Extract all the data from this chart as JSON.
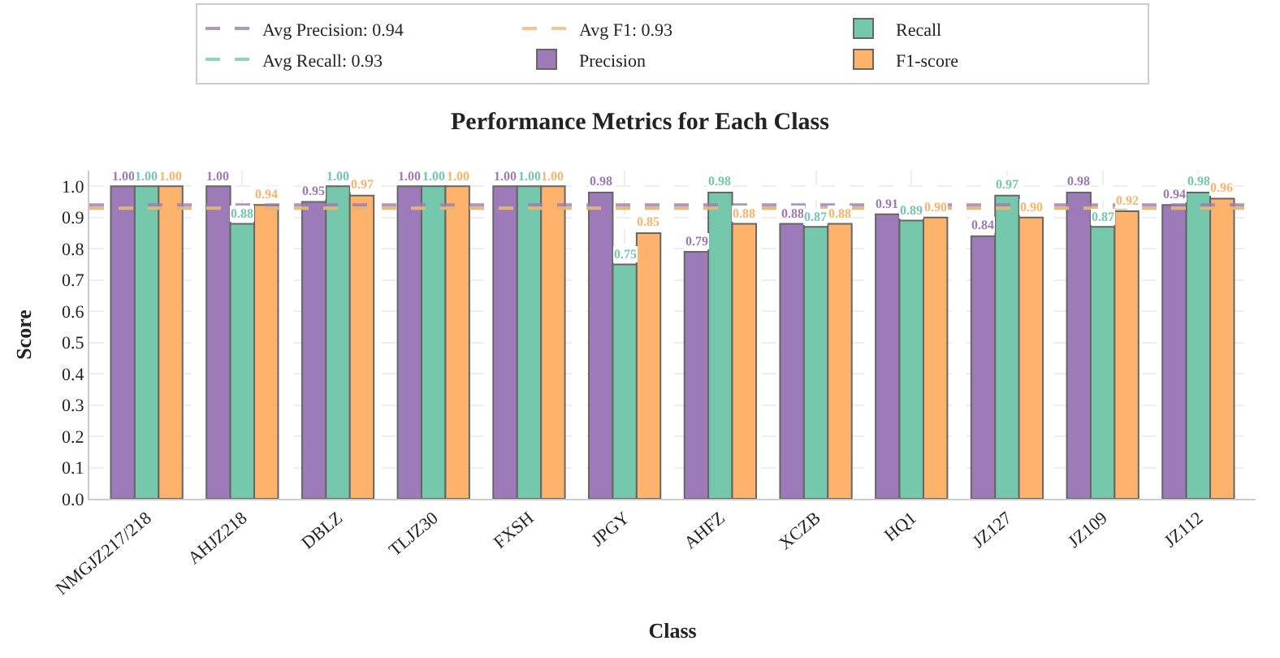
{
  "chart_data": {
    "type": "bar",
    "title": "Performance Metrics for Each Class",
    "xlabel": "Class",
    "ylabel": "Score",
    "categories": [
      "NMGJZ217/218",
      "AHJZ218",
      "DBLZ",
      "TLJZ30",
      "FXSH",
      "JPGY",
      "AHFZ",
      "XCZB",
      "HQ1",
      "JZ127",
      "JZ109",
      "JZ112"
    ],
    "series": [
      {
        "name": "Precision",
        "color": "#9c7bb8",
        "values": [
          1.0,
          1.0,
          0.95,
          1.0,
          1.0,
          0.98,
          0.79,
          0.88,
          0.91,
          0.84,
          0.98,
          0.94
        ],
        "value_labels": [
          "1.00",
          "1.00",
          "0.95",
          "1.00",
          "1.00",
          "0.98",
          "0.79",
          "0.88",
          "0.91",
          "0.84",
          "0.98",
          "0.94"
        ]
      },
      {
        "name": "Recall",
        "color": "#76c8ac",
        "values": [
          1.0,
          0.88,
          1.0,
          1.0,
          1.0,
          0.75,
          0.98,
          0.87,
          0.89,
          0.97,
          0.87,
          0.98
        ],
        "value_labels": [
          "1.00",
          "0.88",
          "1.00",
          "1.00",
          "1.00",
          "0.75",
          "0.98",
          "0.87",
          "0.89",
          "0.97",
          "0.87",
          "0.98"
        ]
      },
      {
        "name": "F1-score",
        "color": "#fdb36b",
        "values": [
          1.0,
          0.94,
          0.97,
          1.0,
          1.0,
          0.85,
          0.88,
          0.88,
          0.9,
          0.9,
          0.92,
          0.96
        ],
        "value_labels": [
          "1.00",
          "0.94",
          "0.97",
          "1.00",
          "1.00",
          "0.85",
          "0.88",
          "0.88",
          "0.90",
          "0.90",
          "0.92",
          "0.96"
        ]
      }
    ],
    "ref_lines": [
      {
        "axis": "y",
        "value": 0.94,
        "label": "Avg Precision: 0.94",
        "color": "#9c7bb8",
        "line_style": "dashed"
      },
      {
        "axis": "y",
        "value": 0.93,
        "label": "Avg Recall: 0.93",
        "color": "#76c8ac",
        "line_style": "dashed"
      },
      {
        "axis": "y",
        "value": 0.93,
        "label": "Avg F1: 0.93",
        "color": "#fdb36b",
        "line_style": "dashed"
      }
    ],
    "ylim": [
      0,
      1.05
    ],
    "yticks": [
      {
        "value": 0,
        "label": "0.0"
      },
      {
        "value": 0.1,
        "label": "0.1"
      },
      {
        "value": 0.2,
        "label": "0.2"
      },
      {
        "value": 0.3,
        "label": "0.3"
      },
      {
        "value": 0.4,
        "label": "0.4"
      },
      {
        "value": 0.5,
        "label": "0.5"
      },
      {
        "value": 0.6,
        "label": "0.6"
      },
      {
        "value": 0.7,
        "label": "0.7"
      },
      {
        "value": 0.8,
        "label": "0.8"
      },
      {
        "value": 0.9,
        "label": "0.9"
      },
      {
        "value": 1.0,
        "label": "1.0"
      }
    ],
    "grid": true,
    "legend": "top"
  }
}
